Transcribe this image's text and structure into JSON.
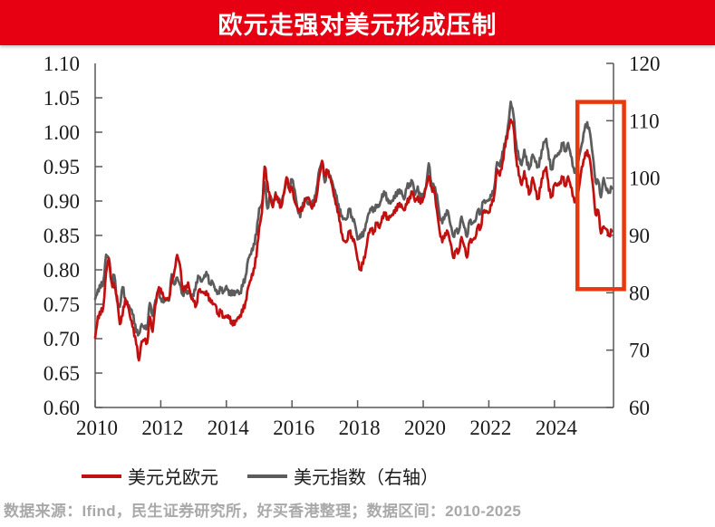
{
  "title": {
    "text": "欧元走强对美元形成压制",
    "bg_color": "#E60012",
    "text_color": "#FFFFFF"
  },
  "footer": {
    "text": "数据来源：Ifind，民生证券研究所，好买香港整理；数据区间：2010-2025",
    "color": "#A9A9A9"
  },
  "chart_data": {
    "type": "line",
    "title": "欧元走强对美元形成压制",
    "grid": false,
    "legend_position": "bottom",
    "x_axis": {
      "min": 2010.0,
      "max": 2025.8,
      "tick_years": [
        2010,
        2012,
        2014,
        2016,
        2018,
        2020,
        2022,
        2024
      ],
      "tick_labels": [
        "2010",
        "2012",
        "2014",
        "2016",
        "2018",
        "2020",
        "2022",
        "2024"
      ]
    },
    "left_axis": {
      "min": 0.6,
      "max": 1.1,
      "step": 0.05,
      "tick_labels": [
        "1.10",
        "1.05",
        "1.00",
        "0.95",
        "0.90",
        "0.85",
        "0.80",
        "0.75",
        "0.70",
        "0.65",
        "0.60"
      ]
    },
    "right_axis": {
      "min": 60,
      "max": 120,
      "step": 10,
      "tick_labels": [
        "120",
        "110",
        "100",
        "90",
        "80",
        "70",
        "60"
      ]
    },
    "x_start": 2010.0,
    "x_step_years": 0.08333,
    "series": [
      {
        "name": "美元兑欧元",
        "axis": "left",
        "color": "#C11010",
        "values": [
          0.701,
          0.731,
          0.737,
          0.746,
          0.796,
          0.819,
          0.781,
          0.775,
          0.763,
          0.719,
          0.735,
          0.758,
          0.746,
          0.73,
          0.714,
          0.692,
          0.67,
          0.694,
          0.699,
          0.694,
          0.73,
          0.712,
          0.748,
          0.769,
          0.775,
          0.758,
          0.757,
          0.76,
          0.781,
          0.8,
          0.822,
          0.806,
          0.775,
          0.77,
          0.781,
          0.763,
          0.752,
          0.749,
          0.772,
          0.766,
          0.769,
          0.763,
          0.757,
          0.752,
          0.748,
          0.735,
          0.74,
          0.73,
          0.734,
          0.73,
          0.724,
          0.722,
          0.729,
          0.733,
          0.741,
          0.752,
          0.775,
          0.787,
          0.8,
          0.82,
          0.862,
          0.881,
          0.952,
          0.926,
          0.901,
          0.893,
          0.909,
          0.899,
          0.892,
          0.909,
          0.936,
          0.917,
          0.917,
          0.901,
          0.889,
          0.884,
          0.893,
          0.901,
          0.906,
          0.893,
          0.891,
          0.909,
          0.936,
          0.957,
          0.939,
          0.943,
          0.934,
          0.917,
          0.893,
          0.885,
          0.855,
          0.84,
          0.843,
          0.856,
          0.847,
          0.84,
          0.813,
          0.8,
          0.81,
          0.826,
          0.855,
          0.858,
          0.855,
          0.87,
          0.86,
          0.877,
          0.881,
          0.875,
          0.877,
          0.881,
          0.889,
          0.893,
          0.895,
          0.885,
          0.897,
          0.905,
          0.913,
          0.901,
          0.905,
          0.897,
          0.905,
          0.917,
          0.938,
          0.92,
          0.913,
          0.889,
          0.855,
          0.84,
          0.855,
          0.853,
          0.84,
          0.818,
          0.826,
          0.828,
          0.847,
          0.833,
          0.82,
          0.84,
          0.844,
          0.847,
          0.862,
          0.862,
          0.885,
          0.884,
          0.885,
          0.893,
          0.909,
          0.948,
          0.935,
          0.957,
          0.98,
          1.0,
          1.02,
          1.008,
          0.962,
          0.939,
          0.922,
          0.943,
          0.922,
          0.909,
          0.935,
          0.917,
          0.901,
          0.922,
          0.943,
          0.948,
          0.917,
          0.905,
          0.924,
          0.924,
          0.926,
          0.935,
          0.922,
          0.934,
          0.922,
          0.905,
          0.897,
          0.922,
          0.948,
          0.962,
          0.975,
          0.957,
          0.926,
          0.881,
          0.885,
          0.855,
          0.862,
          0.858,
          0.851,
          0.856
        ]
      },
      {
        "name": "美元指数（右轴）",
        "axis": "right",
        "color": "#5C5C5C",
        "values": [
          78.9,
          80.4,
          81.1,
          81.9,
          86.6,
          86.0,
          81.6,
          83.2,
          78.7,
          77.3,
          81.2,
          79.0,
          77.7,
          77.4,
          76.0,
          73.1,
          73.0,
          74.3,
          73.9,
          74.1,
          78.0,
          76.2,
          78.6,
          80.2,
          79.3,
          78.1,
          79.0,
          78.8,
          83.0,
          81.6,
          82.7,
          81.2,
          79.9,
          80.0,
          80.2,
          79.8,
          79.2,
          81.9,
          82.9,
          81.7,
          83.3,
          83.1,
          81.5,
          82.1,
          80.2,
          80.2,
          80.7,
          80.0,
          81.3,
          79.7,
          80.2,
          79.8,
          80.4,
          79.8,
          81.4,
          82.7,
          85.9,
          86.9,
          88.3,
          90.3,
          94.8,
          95.3,
          99.5,
          94.6,
          96.9,
          95.5,
          97.3,
          95.8,
          96.2,
          96.9,
          100.0,
          98.7,
          99.6,
          98.2,
          94.6,
          93.1,
          95.9,
          96.1,
          95.5,
          96.0,
          95.5,
          98.4,
          101.5,
          102.8,
          99.5,
          101.1,
          100.4,
          99.0,
          96.9,
          95.6,
          93.4,
          92.7,
          93.1,
          94.6,
          93.1,
          92.3,
          89.1,
          90.2,
          90.0,
          91.8,
          94.0,
          94.5,
          94.6,
          95.1,
          95.1,
          97.1,
          97.3,
          96.2,
          95.6,
          96.2,
          97.3,
          97.5,
          97.8,
          96.1,
          98.5,
          98.9,
          99.4,
          97.3,
          98.3,
          96.4,
          97.4,
          98.1,
          102.8,
          99.0,
          98.3,
          97.4,
          93.3,
          92.1,
          93.9,
          94.0,
          91.9,
          89.9,
          90.6,
          90.9,
          93.2,
          91.3,
          90.0,
          92.4,
          92.2,
          92.6,
          94.2,
          94.1,
          96.0,
          95.7,
          96.5,
          96.7,
          98.3,
          103.0,
          101.8,
          104.7,
          105.9,
          108.8,
          113.5,
          111.0,
          106.0,
          103.5,
          102.1,
          104.9,
          102.5,
          101.7,
          104.2,
          102.9,
          101.9,
          103.6,
          106.2,
          106.7,
          103.5,
          101.3,
          103.5,
          104.1,
          104.5,
          106.2,
          104.7,
          105.9,
          104.1,
          101.7,
          100.8,
          104.0,
          105.7,
          108.4,
          109.9,
          107.6,
          104.2,
          99.4,
          99.3,
          96.9,
          99.9,
          97.8,
          97.8,
          98.2
        ]
      }
    ],
    "highlight_box": {
      "x_from": 2024.7,
      "x_to": 2026.12,
      "left_from": 0.772,
      "left_to": 1.044,
      "color": "#E8380D"
    }
  }
}
